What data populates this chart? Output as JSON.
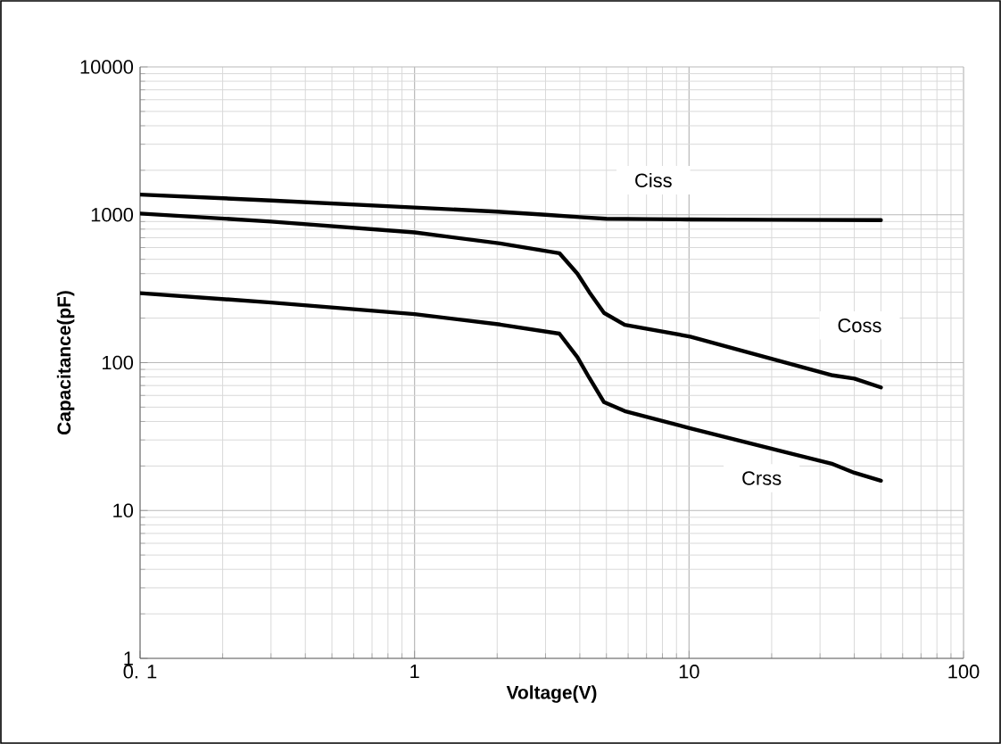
{
  "chart_data": {
    "type": "line",
    "xlabel": "Voltage(V)",
    "ylabel": "Capacitance(pF)",
    "log": "xy",
    "grid": true,
    "marker": "none",
    "line_style": "solid",
    "legend": false,
    "xlim": [
      0.1,
      100
    ],
    "ylim": [
      1,
      10000
    ],
    "xticks": [
      {
        "value": 0.1,
        "label": "0. 1"
      },
      1,
      10,
      100
    ],
    "yticks": [
      1,
      10,
      100,
      1000,
      10000
    ],
    "series": [
      {
        "name": "Ciss",
        "color": "#000000",
        "x": [
          0.1,
          0.3,
          1,
          2,
          3,
          4,
          5,
          7,
          10,
          20,
          50
        ],
        "values": [
          1370,
          1250,
          1120,
          1050,
          1000,
          965,
          940,
          935,
          930,
          925,
          920
        ]
      },
      {
        "name": "Coss",
        "color": "#000000",
        "x": [
          0.1,
          0.3,
          1,
          2.05,
          3.37,
          3.92,
          4.33,
          4.9,
          5.83,
          10.1,
          33.4,
          40,
          50
        ],
        "values": [
          1020,
          900,
          760,
          640,
          550,
          400,
          300,
          217,
          180,
          150,
          82,
          78,
          68
        ]
      },
      {
        "name": "Crss",
        "color": "#000000",
        "x": [
          0.1,
          0.3,
          1,
          2.05,
          3.37,
          3.92,
          4.33,
          4.9,
          5.83,
          10.1,
          33.4,
          40,
          50
        ],
        "values": [
          295,
          255,
          213,
          181,
          157,
          109,
          79,
          54,
          47,
          36,
          20.6,
          18,
          15.9
        ]
      }
    ]
  }
}
